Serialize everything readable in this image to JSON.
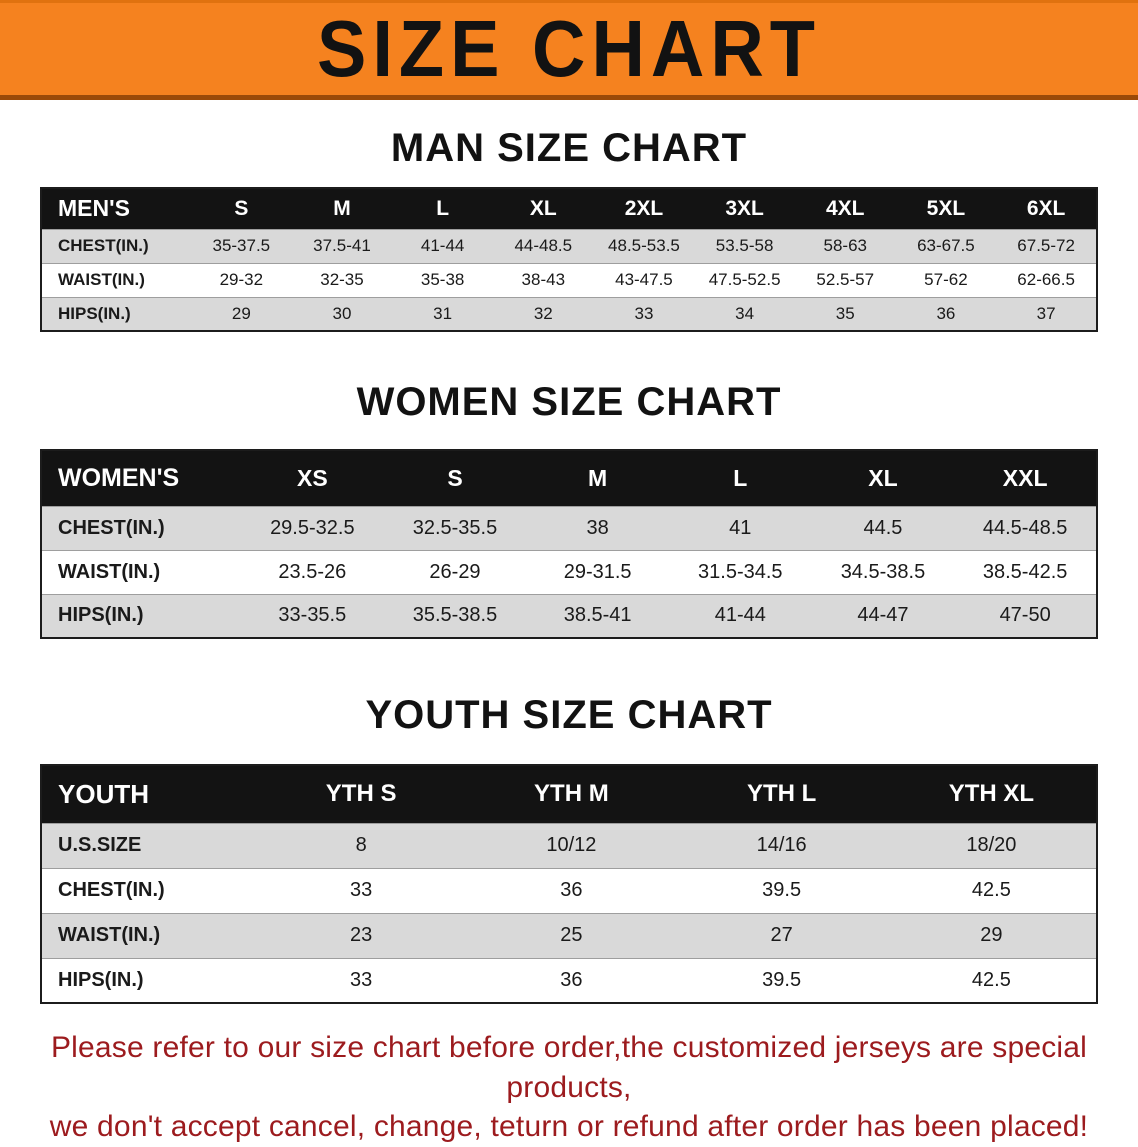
{
  "banner": {
    "title": "SIZE CHART",
    "bg_color": "#f5821f",
    "text_color": "#121212"
  },
  "sections": [
    {
      "heading": "MAN SIZE CHART",
      "table": {
        "header": [
          "MEN'S",
          "S",
          "M",
          "L",
          "XL",
          "2XL",
          "3XL",
          "4XL",
          "5XL",
          "6XL"
        ],
        "rows": [
          {
            "label": "CHEST(IN.)",
            "values": [
              "35-37.5",
              "37.5-41",
              "41-44",
              "44-48.5",
              "48.5-53.5",
              "53.5-58",
              "58-63",
              "63-67.5",
              "67.5-72"
            ]
          },
          {
            "label": "WAIST(IN.)",
            "values": [
              "29-32",
              "32-35",
              "35-38",
              "38-43",
              "43-47.5",
              "47.5-52.5",
              "52.5-57",
              "57-62",
              "62-66.5"
            ]
          },
          {
            "label": "HIPS(IN.)",
            "values": [
              "29",
              "30",
              "31",
              "32",
              "33",
              "34",
              "35",
              "36",
              "37"
            ]
          }
        ]
      }
    },
    {
      "heading": "WOMEN SIZE CHART",
      "table": {
        "header": [
          "WOMEN'S",
          "XS",
          "S",
          "M",
          "L",
          "XL",
          "XXL"
        ],
        "rows": [
          {
            "label": "CHEST(IN.)",
            "values": [
              "29.5-32.5",
              "32.5-35.5",
              "38",
              "41",
              "44.5",
              "44.5-48.5"
            ]
          },
          {
            "label": "WAIST(IN.)",
            "values": [
              "23.5-26",
              "26-29",
              "29-31.5",
              "31.5-34.5",
              "34.5-38.5",
              "38.5-42.5"
            ]
          },
          {
            "label": "HIPS(IN.)",
            "values": [
              "33-35.5",
              "35.5-38.5",
              "38.5-41",
              "41-44",
              "44-47",
              "47-50"
            ]
          }
        ]
      }
    },
    {
      "heading": "YOUTH SIZE CHART",
      "table": {
        "header": [
          "YOUTH",
          "YTH S",
          "YTH M",
          "YTH L",
          "YTH XL"
        ],
        "rows": [
          {
            "label": "U.S.SIZE",
            "values": [
              "8",
              "10/12",
              "14/16",
              "18/20"
            ]
          },
          {
            "label": "CHEST(IN.)",
            "values": [
              "33",
              "36",
              "39.5",
              "42.5"
            ]
          },
          {
            "label": "WAIST(IN.)",
            "values": [
              "23",
              "25",
              "27",
              "29"
            ]
          },
          {
            "label": "HIPS(IN.)",
            "values": [
              "33",
              "36",
              "39.5",
              "42.5"
            ]
          }
        ]
      }
    }
  ],
  "footer": {
    "line1": "Please refer to our size chart before order,the customized jerseys are special products,",
    "line2": "we don't accept cancel, change, teturn or refund after order has been placed!",
    "text_color": "#9c1b1e"
  }
}
